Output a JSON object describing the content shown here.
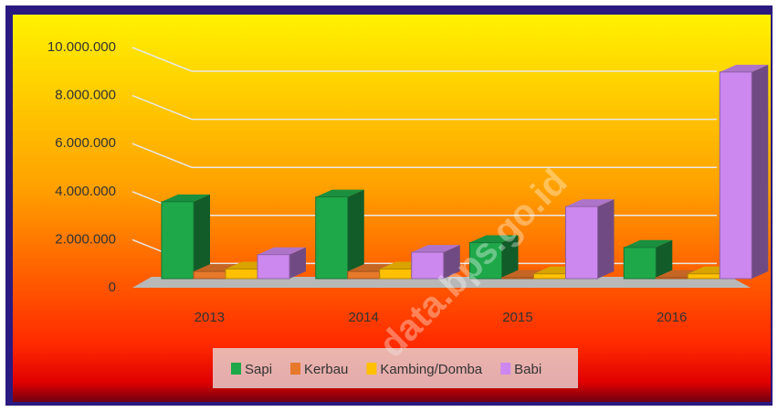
{
  "chart_data": {
    "type": "bar3d",
    "categories": [
      "2013",
      "2014",
      "2015",
      "2016"
    ],
    "series": [
      {
        "name": "Sapi",
        "color": "#1fa84a",
        "values": [
          3200000,
          3400000,
          1500000,
          1300000
        ]
      },
      {
        "name": "Kerbau",
        "color": "#e8782a",
        "values": [
          300000,
          300000,
          50000,
          50000
        ]
      },
      {
        "name": "Kambing/Domba",
        "color": "#ffc000",
        "values": [
          400000,
          400000,
          200000,
          200000
        ]
      },
      {
        "name": "Babi",
        "color": "#cc88ee",
        "values": [
          1000000,
          1100000,
          3000000,
          8600000
        ]
      }
    ],
    "ylim": [
      0,
      10000000
    ],
    "yticks": [
      0,
      {
        "value": 2000000,
        "label": "2.000.000"
      },
      {
        "value": 4000000,
        "label": "4.000.000"
      },
      {
        "value": 6000000,
        "label": "6.000.000"
      },
      {
        "value": 8000000,
        "label": "8.000.000"
      },
      {
        "value": 10000000,
        "label": "10.000.000"
      }
    ],
    "grid": true,
    "legend": "bottom",
    "watermark": "data.bps.go.id"
  }
}
